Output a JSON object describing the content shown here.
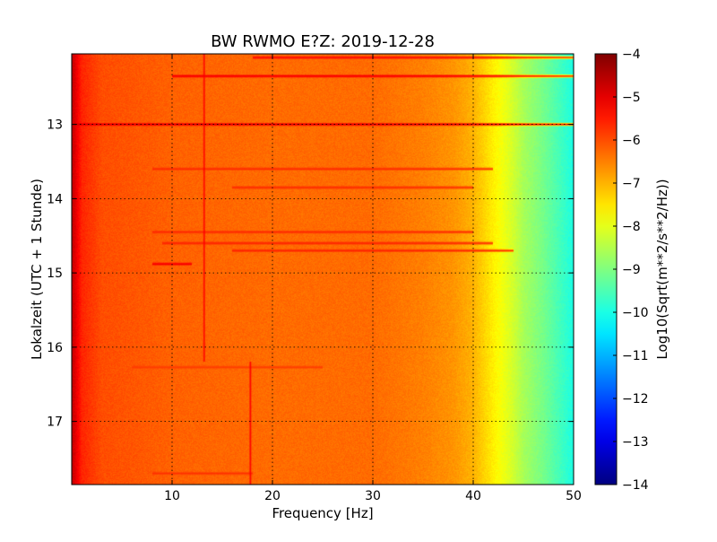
{
  "chart_data": {
    "type": "heatmap",
    "title": "BW RWMO E?Z: 2019-12-28",
    "xlabel": "Frequency [Hz]",
    "ylabel": "Lokalzeit (UTC + 1 Stunde)",
    "colorbar_label": "Log10(Sqrt(m**2/s**2/Hz))",
    "colormap": "jet",
    "grid": true,
    "xlim": [
      0,
      50
    ],
    "ylim": [
      17.85,
      12.05
    ],
    "clim": [
      -14,
      -4
    ],
    "x_ticks": [
      10,
      20,
      30,
      40,
      50
    ],
    "y_ticks": [
      13,
      14,
      15,
      16,
      17
    ],
    "colorbar_ticks": [
      -4,
      -5,
      -6,
      -7,
      -8,
      -9,
      -10,
      -11,
      -12,
      -13,
      -14
    ],
    "x_tick_labels": [
      "10",
      "20",
      "30",
      "40",
      "50"
    ],
    "y_tick_labels": [
      "13",
      "14",
      "15",
      "16",
      "17"
    ],
    "colorbar_tick_labels": [
      "−4",
      "−5",
      "−6",
      "−7",
      "−8",
      "−9",
      "−10",
      "−11",
      "−12",
      "−13",
      "−14"
    ],
    "spectral_profile": {
      "frequency_hz": [
        0,
        0.5,
        1,
        3,
        10,
        20,
        30,
        35,
        38,
        40,
        41,
        42,
        43,
        44,
        45,
        47,
        49,
        50
      ],
      "log10_level": [
        -4.6,
        -5.1,
        -5.6,
        -6.0,
        -6.2,
        -6.3,
        -6.3,
        -6.5,
        -6.7,
        -7.0,
        -7.3,
        -7.6,
        -7.9,
        -8.2,
        -8.6,
        -9.1,
        -9.7,
        -10.0
      ]
    },
    "horizontal_lines": [
      {
        "time_h": 12.1,
        "f_start_hz": 18,
        "f_end_hz": 50,
        "log10_level": -5.2
      },
      {
        "time_h": 12.35,
        "f_start_hz": 10,
        "f_end_hz": 50,
        "log10_level": -5.0
      },
      {
        "time_h": 13.0,
        "f_start_hz": 0,
        "f_end_hz": 50,
        "log10_level": -4.8
      },
      {
        "time_h": 13.6,
        "f_start_hz": 8,
        "f_end_hz": 42,
        "log10_level": -5.6
      },
      {
        "time_h": 13.85,
        "f_start_hz": 16,
        "f_end_hz": 40,
        "log10_level": -5.6
      },
      {
        "time_h": 14.45,
        "f_start_hz": 8,
        "f_end_hz": 40,
        "log10_level": -5.6
      },
      {
        "time_h": 14.6,
        "f_start_hz": 9,
        "f_end_hz": 42,
        "log10_level": -5.5
      },
      {
        "time_h": 14.7,
        "f_start_hz": 16,
        "f_end_hz": 44,
        "log10_level": -5.5
      },
      {
        "time_h": 14.88,
        "f_start_hz": 8,
        "f_end_hz": 12,
        "log10_level": -5.0
      },
      {
        "time_h": 16.27,
        "f_start_hz": 6,
        "f_end_hz": 25,
        "log10_level": -5.8
      },
      {
        "time_h": 17.7,
        "f_start_hz": 8,
        "f_end_hz": 18,
        "log10_level": -5.7
      }
    ],
    "vertical_lines": [
      {
        "freq_hz": 13.2,
        "t_start_h": 12.05,
        "t_end_h": 16.2,
        "log10_level": -5.2
      },
      {
        "freq_hz": 17.8,
        "t_start_h": 16.2,
        "t_end_h": 17.85,
        "log10_level": -5.2
      }
    ]
  }
}
